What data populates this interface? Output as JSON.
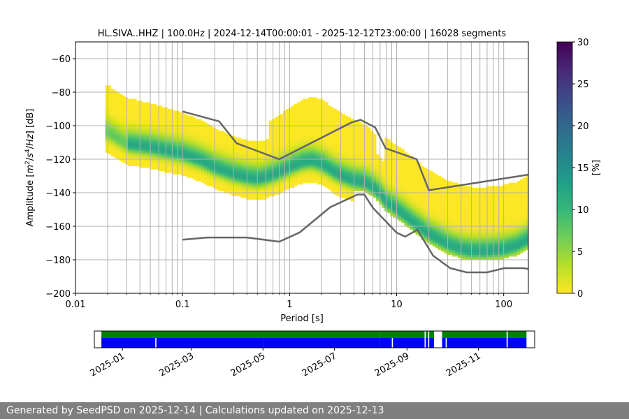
{
  "footer": "Generated by SeedPSD on 2025-12-14 | Calculations updated on 2025-12-13",
  "chart_data": [
    {
      "type": "heatmap",
      "title": "HL.SIVA..HHZ | 100.0Hz | 2024-12-14T00:00:01 - 2025-12-12T23:00:00 | 16028 segments",
      "xlabel": "Period [s]",
      "ylabel_parts": [
        "Amplitude [",
        "m",
        "2",
        "/",
        "s",
        "4",
        "/",
        "Hz",
        "] [dB]"
      ],
      "xscale": "log",
      "xlim": [
        0.01,
        170
      ],
      "ylim": [
        -200,
        -50
      ],
      "x_ticks": [
        0.01,
        0.1,
        1,
        10,
        100
      ],
      "x_tick_labels": [
        "0.01",
        "0.1",
        "1",
        "10",
        "100"
      ],
      "y_ticks": [
        -200,
        -180,
        -160,
        -140,
        -120,
        -100,
        -80,
        -60
      ],
      "y_tick_labels": [
        "−200",
        "−180",
        "−160",
        "−140",
        "−120",
        "−100",
        "−80",
        "−60"
      ],
      "grid_periods": [
        0.02,
        0.03,
        0.04,
        0.05,
        0.06,
        0.07,
        0.08,
        0.09,
        0.1,
        0.2,
        0.3,
        0.4,
        0.5,
        0.6,
        0.7,
        0.8,
        0.9,
        1,
        2,
        3,
        4,
        5,
        6,
        7,
        8,
        9,
        10,
        20,
        30,
        40,
        50,
        60,
        70,
        80,
        90,
        100
      ],
      "colorbar": {
        "label": "[%]",
        "range": [
          0,
          30
        ],
        "ticks": [
          0,
          5,
          10,
          15,
          20,
          25,
          30
        ],
        "colors": [
          "#fde725",
          "#b5de2b",
          "#6ece58",
          "#35b779",
          "#1f9e89",
          "#26828e",
          "#31688e",
          "#3e4989",
          "#482878",
          "#440154"
        ]
      },
      "mode_curve": {
        "x": [
          0.02,
          0.025,
          0.03,
          0.05,
          0.07,
          0.1,
          0.15,
          0.2,
          0.3,
          0.4,
          0.5,
          0.6,
          0.8,
          1,
          1.3,
          1.6,
          2,
          2.5,
          3,
          4,
          5,
          6,
          7,
          8,
          10,
          12,
          15,
          20,
          30,
          40,
          50,
          70,
          100,
          130,
          170
        ],
        "y": [
          -104,
          -108,
          -111,
          -113,
          -115,
          -117,
          -121,
          -125,
          -129,
          -131,
          -132,
          -131,
          -128,
          -125,
          -122,
          -121,
          -123,
          -127,
          -130,
          -133,
          -134,
          -137,
          -141,
          -146,
          -150,
          -154,
          -159,
          -165,
          -171,
          -174,
          -175,
          -175,
          -174,
          -172,
          -168
        ]
      },
      "nhnm": {
        "x": [
          0.1,
          0.22,
          0.32,
          0.8,
          3.8,
          4.6,
          6.3,
          7.9,
          15.4,
          20,
          354.8
        ],
        "y": [
          -91.5,
          -97.4,
          -110.5,
          -120,
          -98,
          -96.5,
          -101,
          -113.5,
          -120,
          -138.5,
          -126
        ]
      },
      "nlnm": {
        "x": [
          0.1,
          0.17,
          0.4,
          0.8,
          1.24,
          2.4,
          4.3,
          5,
          6,
          10,
          12,
          15.6,
          21.9,
          31.6,
          45,
          70,
          101,
          154,
          170
        ],
        "y": [
          -168,
          -166.7,
          -166.7,
          -169.2,
          -163.7,
          -148.6,
          -141.1,
          -141.1,
          -149,
          -163.8,
          -166.2,
          -162.1,
          -177.5,
          -185,
          -187.5,
          -187.5,
          -185,
          -185,
          -185.5
        ]
      }
    },
    {
      "type": "timeline",
      "x_ticks": [
        "2025-01-01",
        "2025-03-01",
        "2025-05-01",
        "2025-07-01",
        "2025-09-01",
        "2025-11-01"
      ],
      "x_tick_labels": [
        "2025-01",
        "2025-03",
        "2025-05",
        "2025-07",
        "2025-09",
        "2025-11"
      ],
      "xlim": [
        "2024-12-08",
        "2025-12-19"
      ],
      "top_color": "#008000",
      "bottom_color": "#0000ff",
      "top_segments": [
        [
          "2024-12-14",
          "2025-08-08"
        ],
        [
          "2025-08-08",
          "2025-09-16"
        ],
        [
          "2025-09-17",
          "2025-09-19"
        ],
        [
          "2025-09-20",
          "2025-09-24"
        ],
        [
          "2025-10-01",
          "2025-11-25"
        ],
        [
          "2025-11-26",
          "2025-12-12"
        ]
      ],
      "bottom_segments": [
        [
          "2024-12-14",
          "2025-01-29"
        ],
        [
          "2025-01-30",
          "2025-05-02"
        ],
        [
          "2025-05-02",
          "2025-08-08"
        ],
        [
          "2025-08-08",
          "2025-08-19"
        ],
        [
          "2025-08-20",
          "2025-09-16"
        ],
        [
          "2025-09-17",
          "2025-09-19"
        ],
        [
          "2025-09-20",
          "2025-09-24"
        ],
        [
          "2025-10-01",
          "2025-10-04"
        ],
        [
          "2025-10-05",
          "2025-11-25"
        ],
        [
          "2025-11-26",
          "2025-12-12"
        ]
      ]
    }
  ]
}
